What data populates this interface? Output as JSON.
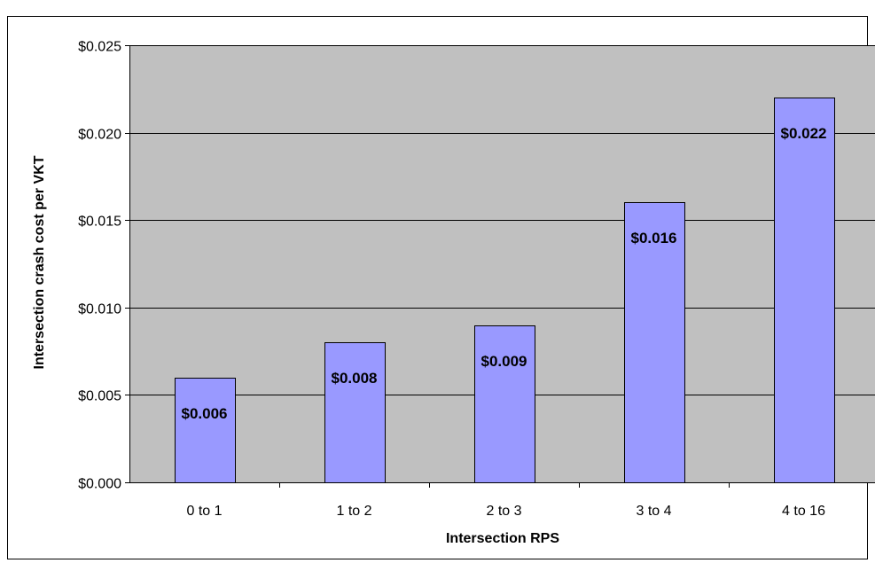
{
  "chart_data": {
    "type": "bar",
    "title": "",
    "xlabel": "Intersection RPS",
    "ylabel": "Intersection crash cost per VKT",
    "categories": [
      "0 to 1",
      "1 to 2",
      "2 to 3",
      "3 to 4",
      "4 to 16"
    ],
    "values": [
      0.006,
      0.008,
      0.009,
      0.016,
      0.022
    ],
    "data_labels": [
      "$0.006",
      "$0.008",
      "$0.009",
      "$0.016",
      "$0.022"
    ],
    "ylim": [
      0,
      0.025
    ],
    "yticks": [
      0,
      0.005,
      0.01,
      0.015,
      0.02,
      0.025
    ],
    "ytick_labels": [
      "$0.000",
      "$0.005",
      "$0.010",
      "$0.015",
      "$0.020",
      "$0.025"
    ],
    "grid": true,
    "legend": "none",
    "colors": {
      "bar_fill": "#9999ff",
      "bar_stroke": "#000000",
      "plot_background": "#c0c0c0",
      "gridline": "#000000"
    }
  }
}
